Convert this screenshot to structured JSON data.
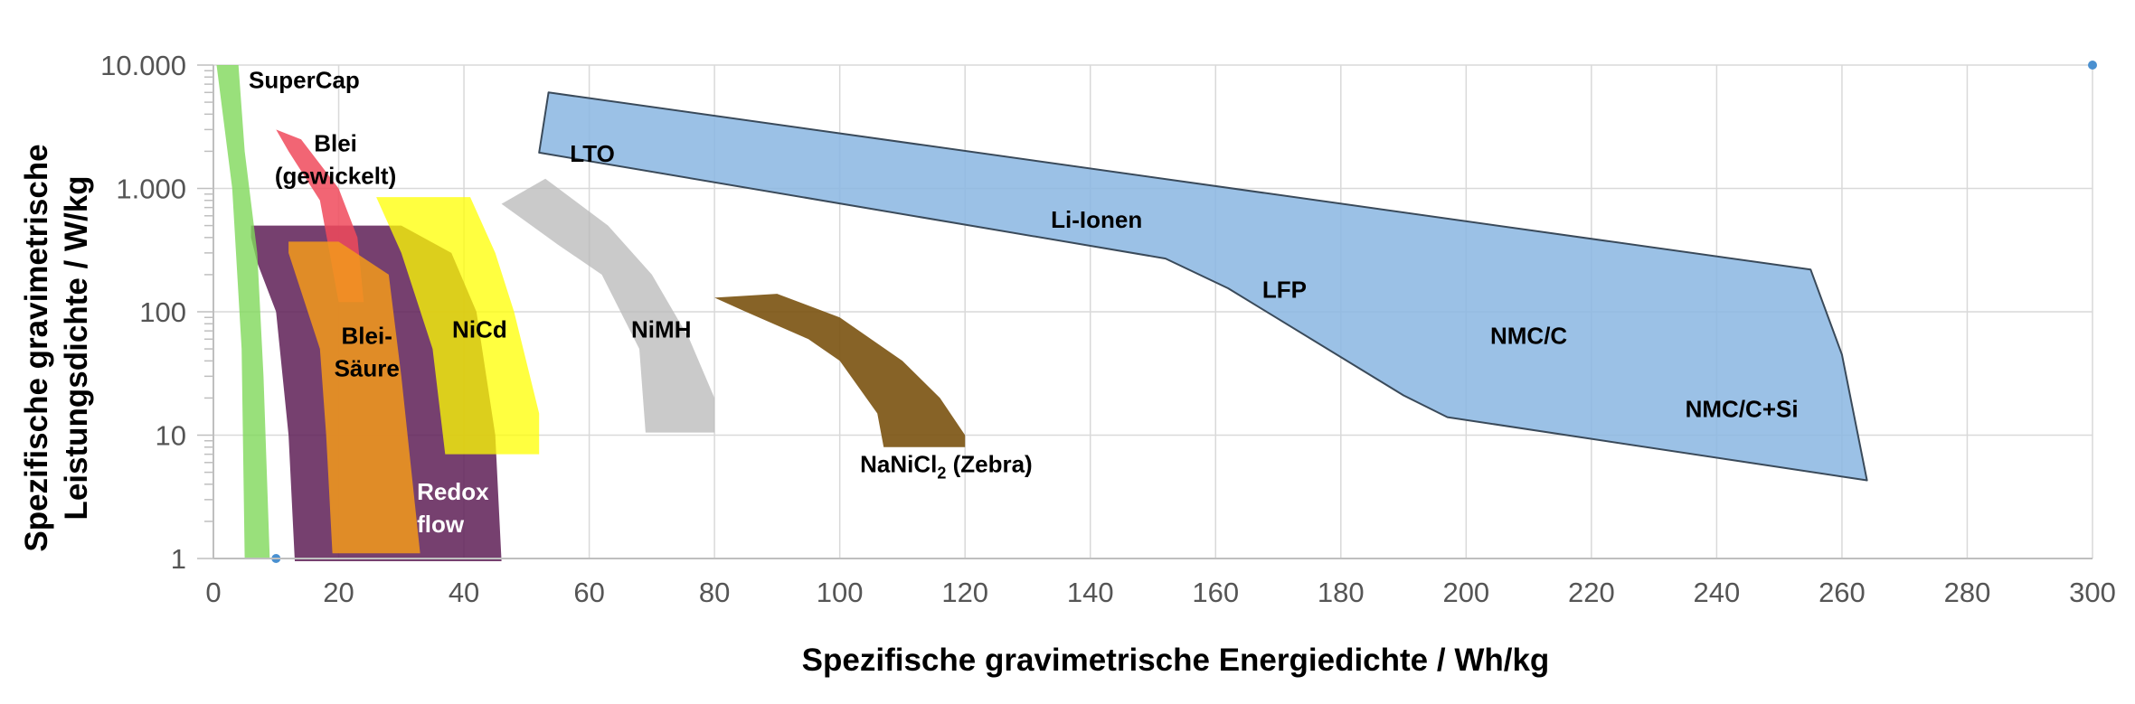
{
  "chart_data": {
    "type": "area",
    "xlabel": "Spezifische gravimetrische Energiedichte / Wh/kg",
    "ylabel_line1": "Spezifische gravimetrische",
    "ylabel_line2": "Leistungsdichte / W/kg",
    "xlim": [
      0,
      300
    ],
    "ylim": [
      1,
      10000
    ],
    "yscale": "log",
    "grid": true,
    "x_ticks": [
      0,
      20,
      40,
      60,
      80,
      100,
      120,
      140,
      160,
      180,
      200,
      220,
      240,
      260,
      280,
      300
    ],
    "x_tick_labels": [
      "0",
      "20",
      "40",
      "60",
      "80",
      "100",
      "120",
      "140",
      "160",
      "180",
      "200",
      "220",
      "240",
      "260",
      "280",
      "300"
    ],
    "y_ticks": [
      1,
      10,
      100,
      1000,
      10000
    ],
    "y_tick_labels": [
      "1",
      "10",
      "100",
      "1.000",
      "10.000"
    ],
    "series": [
      {
        "name": "Redox flow",
        "color": "#5e1f56",
        "opacity": 0.85,
        "polygon": [
          [
            6,
            500
          ],
          [
            30,
            500
          ],
          [
            38,
            300
          ],
          [
            42,
            100
          ],
          [
            45,
            10
          ],
          [
            46,
            0.95
          ],
          [
            13,
            0.95
          ],
          [
            12,
            10
          ],
          [
            10,
            100
          ],
          [
            7,
            250
          ],
          [
            6,
            400
          ]
        ]
      },
      {
        "name": "SuperCap",
        "color": "#7fd85a",
        "opacity": 0.8,
        "polygon": [
          [
            0.5,
            10000
          ],
          [
            4,
            10000
          ],
          [
            5,
            2000
          ],
          [
            7,
            300
          ],
          [
            8,
            30
          ],
          [
            9,
            1
          ],
          [
            5,
            1
          ],
          [
            4.5,
            50
          ],
          [
            3,
            1000
          ]
        ]
      },
      {
        "name": "Blei (gewickelt)",
        "color": "#f04a5c",
        "opacity": 0.85,
        "polygon": [
          [
            10,
            3000
          ],
          [
            14,
            2500
          ],
          [
            20,
            1000
          ],
          [
            23,
            400
          ],
          [
            24,
            120
          ],
          [
            20,
            120
          ],
          [
            17,
            800
          ],
          [
            12,
            2000
          ]
        ]
      },
      {
        "name": "Blei-Säure",
        "color": "#f39a1b",
        "opacity": 0.85,
        "polygon": [
          [
            12,
            370
          ],
          [
            20,
            370
          ],
          [
            28,
            200
          ],
          [
            30,
            30
          ],
          [
            33,
            1.1
          ],
          [
            19,
            1.1
          ],
          [
            18,
            10
          ],
          [
            17,
            50
          ],
          [
            12,
            300
          ]
        ]
      },
      {
        "name": "NiCd",
        "color": "#ffff00",
        "opacity": 0.75,
        "polygon": [
          [
            26,
            850
          ],
          [
            41,
            850
          ],
          [
            45,
            300
          ],
          [
            48,
            100
          ],
          [
            52,
            15
          ],
          [
            52,
            7
          ],
          [
            37,
            7
          ],
          [
            35,
            50
          ],
          [
            30,
            300
          ]
        ]
      },
      {
        "name": "NiMH",
        "color": "#b8b8b8",
        "opacity": 0.75,
        "polygon": [
          [
            46,
            750
          ],
          [
            53,
            1200
          ],
          [
            63,
            500
          ],
          [
            70,
            200
          ],
          [
            76,
            60
          ],
          [
            80,
            20
          ],
          [
            80,
            10.5
          ],
          [
            69,
            10.5
          ],
          [
            68,
            50
          ],
          [
            62,
            200
          ],
          [
            55,
            350
          ]
        ]
      },
      {
        "name": "NaNiCl2 (Zebra)",
        "color": "#7a5210",
        "opacity": 0.9,
        "polygon": [
          [
            80,
            130
          ],
          [
            90,
            140
          ],
          [
            100,
            90
          ],
          [
            110,
            40
          ],
          [
            116,
            20
          ],
          [
            120,
            10
          ],
          [
            120,
            8
          ],
          [
            107,
            8
          ],
          [
            106,
            15
          ],
          [
            100,
            40
          ],
          [
            95,
            60
          ],
          [
            85,
            100
          ]
        ]
      },
      {
        "name": "Li-Ionen",
        "color": "#8ab6e2",
        "opacity": 0.85,
        "polygon": [
          [
            52,
            1950
          ],
          [
            53.5,
            6000
          ],
          [
            255,
            220
          ],
          [
            260,
            45
          ],
          [
            264,
            4.3
          ],
          [
            197,
            14
          ],
          [
            190,
            21
          ],
          [
            162,
            155
          ],
          [
            152,
            270
          ]
        ]
      }
    ],
    "annotations": [
      {
        "text": "SuperCap",
        "x": 14.5,
        "y": 6500,
        "color": "#000000",
        "anchor": "middle"
      },
      {
        "text_lines": [
          "Blei",
          "(gewickelt)"
        ],
        "x": 19.5,
        "y": 2000,
        "color": "#000000",
        "anchor": "middle"
      },
      {
        "text_lines": [
          "Blei-",
          "Säure"
        ],
        "x": 24.5,
        "y": 55,
        "color": "#000000",
        "anchor": "middle"
      },
      {
        "text": "NiCd",
        "x": 42.5,
        "y": 62,
        "color": "#000000",
        "anchor": "middle"
      },
      {
        "text": "NiMH",
        "x": 71.5,
        "y": 62,
        "color": "#000000",
        "anchor": "middle"
      },
      {
        "text_lines": [
          "Redox",
          "flow"
        ],
        "x": 32.5,
        "y": 3,
        "color": "#ffffff",
        "anchor": "start"
      },
      {
        "text": "LTO",
        "x": 60.5,
        "y": 1650,
        "color": "#000000",
        "anchor": "middle"
      },
      {
        "text": "Li-Ionen",
        "x": 141,
        "y": 480,
        "color": "#000000",
        "anchor": "middle"
      },
      {
        "text": "LFP",
        "x": 171,
        "y": 130,
        "color": "#000000",
        "anchor": "middle"
      },
      {
        "text": "NMC/C",
        "x": 210,
        "y": 55,
        "color": "#000000",
        "anchor": "middle"
      },
      {
        "text": "NMC/C+Si",
        "x": 244,
        "y": 14,
        "color": "#000000",
        "anchor": "middle"
      },
      {
        "text": "NaNiCl",
        "subscript": "2",
        "suffix": " (Zebra)",
        "x": 117,
        "y": 5,
        "color": "#000000",
        "anchor": "middle"
      }
    ],
    "markers": [
      {
        "x": 10,
        "y": 1,
        "color": "#4a90d0"
      },
      {
        "x": 300,
        "y": 10000,
        "color": "#4a90d0"
      }
    ],
    "colors": {
      "grid": "#d9d9d9",
      "axis": "#bfbfbf",
      "polygon_stroke": "#3a4a5a"
    }
  }
}
